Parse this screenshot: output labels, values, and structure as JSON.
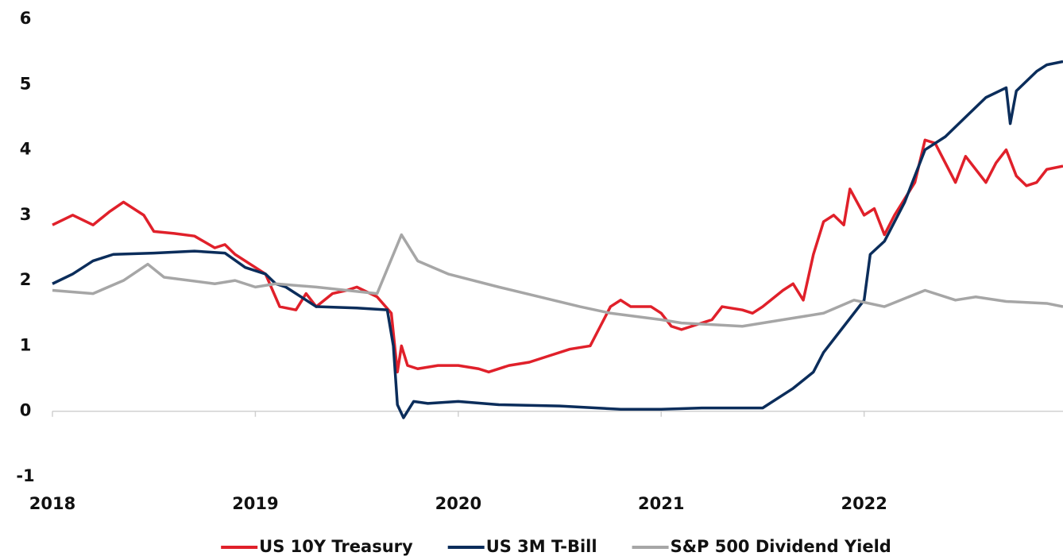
{
  "chart_data": {
    "type": "line",
    "xlim": [
      2018,
      2022.98
    ],
    "xticks": [
      2018,
      2019,
      2020,
      2021,
      2022
    ],
    "ylim": [
      -1,
      6
    ],
    "yticks": [
      -1,
      0,
      1,
      2,
      3,
      4,
      5,
      6
    ],
    "legend": "bottom",
    "series": [
      {
        "name": "US 10Y Treasury",
        "color": "#e0202a",
        "x": [
          2018,
          2018.1,
          2018.2,
          2018.28,
          2018.35,
          2018.45,
          2018.5,
          2018.6,
          2018.7,
          2018.8,
          2018.85,
          2018.9,
          2019.0,
          2019.05,
          2019.12,
          2019.2,
          2019.25,
          2019.3,
          2019.38,
          2019.45,
          2019.5,
          2019.6,
          2019.67,
          2019.7,
          2019.72,
          2019.75,
          2019.8,
          2019.9,
          2020.0,
          2020.1,
          2020.15,
          2020.25,
          2020.35,
          2020.45,
          2020.55,
          2020.65,
          2020.7,
          2020.75,
          2020.8,
          2020.85,
          2020.95,
          2021.0,
          2021.05,
          2021.1,
          2021.2,
          2021.25,
          2021.3,
          2021.4,
          2021.45,
          2021.5,
          2021.6,
          2021.65,
          2021.7,
          2021.75,
          2021.8,
          2021.85,
          2021.9,
          2021.93,
          2022.0,
          2022.05,
          2022.1,
          2022.15,
          2022.25,
          2022.3,
          2022.35,
          2022.4,
          2022.45,
          2022.5,
          2022.6,
          2022.65,
          2022.7,
          2022.75,
          2022.8,
          2022.85,
          2022.9,
          2022.98
        ],
        "values": [
          2.85,
          3.0,
          2.85,
          3.05,
          3.2,
          3.0,
          2.75,
          2.72,
          2.68,
          2.5,
          2.55,
          2.4,
          2.2,
          2.1,
          1.6,
          1.55,
          1.8,
          1.6,
          1.8,
          1.85,
          1.9,
          1.75,
          1.5,
          0.6,
          1.0,
          0.7,
          0.65,
          0.7,
          0.7,
          0.65,
          0.6,
          0.7,
          0.75,
          0.85,
          0.95,
          1.0,
          1.3,
          1.6,
          1.7,
          1.6,
          1.6,
          1.5,
          1.3,
          1.25,
          1.35,
          1.4,
          1.6,
          1.55,
          1.5,
          1.6,
          1.85,
          1.95,
          1.7,
          2.4,
          2.9,
          3.0,
          2.85,
          3.4,
          3.0,
          3.1,
          2.7,
          3.0,
          3.5,
          4.15,
          4.1,
          3.8,
          3.5,
          3.9,
          3.5,
          3.8,
          4.0,
          3.6,
          3.45,
          3.5,
          3.7,
          3.75
        ]
      },
      {
        "name": "US 3M T-Bill",
        "color": "#0b2d5b",
        "x": [
          2018,
          2018.1,
          2018.2,
          2018.3,
          2018.5,
          2018.7,
          2018.85,
          2018.95,
          2019.05,
          2019.1,
          2019.15,
          2019.3,
          2019.5,
          2019.65,
          2019.68,
          2019.7,
          2019.73,
          2019.78,
          2019.85,
          2020.0,
          2020.2,
          2020.5,
          2020.8,
          2021.0,
          2021.2,
          2021.5,
          2021.65,
          2021.75,
          2021.8,
          2021.9,
          2022.0,
          2022.03,
          2022.1,
          2022.2,
          2022.3,
          2022.4,
          2022.5,
          2022.6,
          2022.7,
          2022.72,
          2022.75,
          2022.85,
          2022.9,
          2022.98
        ],
        "values": [
          1.95,
          2.1,
          2.3,
          2.4,
          2.42,
          2.45,
          2.42,
          2.2,
          2.1,
          1.95,
          1.9,
          1.6,
          1.58,
          1.55,
          1.0,
          0.1,
          -0.1,
          0.15,
          0.12,
          0.15,
          0.1,
          0.08,
          0.03,
          0.03,
          0.05,
          0.05,
          0.35,
          0.6,
          0.9,
          1.3,
          1.7,
          2.4,
          2.6,
          3.2,
          4.0,
          4.2,
          4.5,
          4.8,
          4.95,
          4.4,
          4.9,
          5.2,
          5.3,
          5.35
        ]
      },
      {
        "name": "S&P 500 Dividend Yield",
        "color": "#a6a6a6",
        "x": [
          2018,
          2018.2,
          2018.35,
          2018.47,
          2018.55,
          2018.8,
          2018.9,
          2019.0,
          2019.1,
          2019.3,
          2019.6,
          2019.72,
          2019.8,
          2019.95,
          2020.2,
          2020.4,
          2020.6,
          2020.75,
          2021.0,
          2021.1,
          2021.4,
          2021.6,
          2021.8,
          2021.95,
          2022.1,
          2022.3,
          2022.45,
          2022.55,
          2022.7,
          2022.9,
          2022.98
        ],
        "values": [
          1.85,
          1.8,
          2.0,
          2.25,
          2.05,
          1.95,
          2.0,
          1.9,
          1.95,
          1.9,
          1.8,
          2.7,
          2.3,
          2.1,
          1.9,
          1.75,
          1.6,
          1.5,
          1.4,
          1.35,
          1.3,
          1.4,
          1.5,
          1.7,
          1.6,
          1.85,
          1.7,
          1.75,
          1.68,
          1.65,
          1.6
        ]
      }
    ]
  }
}
